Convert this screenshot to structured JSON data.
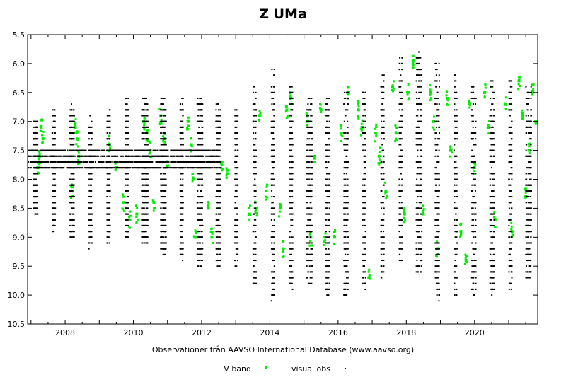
{
  "chart_data": {
    "type": "scatter",
    "title": "Z UMa",
    "xlabel": "Observationer från AAVSO International Database (www.aavso.org)",
    "ylabel": "",
    "xlim": [
      2006.9,
      2021.85
    ],
    "ylim": [
      10.5,
      5.5
    ],
    "y_inverted": true,
    "x_ticks": [
      2008,
      2010,
      2012,
      2014,
      2016,
      2018,
      2020
    ],
    "x_minor_step": 0.5,
    "y_ticks": [
      5.5,
      6.0,
      6.5,
      7.0,
      7.5,
      8.0,
      8.5,
      9.0,
      9.5,
      10.0,
      10.5
    ],
    "y_tick_labels": [
      "5.5",
      "6.0",
      "6.5",
      "7.0",
      "7.5",
      "8.0",
      "8.5",
      "9.0",
      "9.5",
      "10.0",
      "10.5"
    ],
    "legend_position": "bottom",
    "series": [
      {
        "name": "V band",
        "color": "#00ee00",
        "marker": "square",
        "points": [
          [
            2007.3,
            7.1
          ],
          [
            2007.35,
            7.3
          ],
          [
            2007.25,
            7.6
          ],
          [
            2007.2,
            7.8
          ],
          [
            2008.3,
            7.1
          ],
          [
            2008.35,
            7.3
          ],
          [
            2008.4,
            7.6
          ],
          [
            2008.2,
            8.2
          ],
          [
            2009.3,
            7.4
          ],
          [
            2009.5,
            7.7
          ],
          [
            2009.7,
            8.4
          ],
          [
            2009.9,
            8.7
          ],
          [
            2010.3,
            7.0
          ],
          [
            2010.4,
            7.2
          ],
          [
            2010.5,
            7.5
          ],
          [
            2010.1,
            8.6
          ],
          [
            2010.8,
            6.9
          ],
          [
            2010.9,
            7.3
          ],
          [
            2011.0,
            7.7
          ],
          [
            2010.6,
            8.4
          ],
          [
            2011.6,
            7.0
          ],
          [
            2011.7,
            7.4
          ],
          [
            2011.75,
            8.0
          ],
          [
            2011.8,
            9.0
          ],
          [
            2012.6,
            7.7
          ],
          [
            2012.75,
            7.9
          ],
          [
            2012.2,
            8.5
          ],
          [
            2012.3,
            9.0
          ],
          [
            2013.6,
            8.5
          ],
          [
            2013.4,
            8.6
          ],
          [
            2013.9,
            8.2
          ],
          [
            2013.7,
            6.9
          ],
          [
            2014.3,
            8.5
          ],
          [
            2014.4,
            9.2
          ],
          [
            2014.5,
            6.8
          ],
          [
            2014.6,
            6.6
          ],
          [
            2015.1,
            7.0
          ],
          [
            2015.3,
            7.6
          ],
          [
            2015.2,
            9.0
          ],
          [
            2015.5,
            6.8
          ],
          [
            2015.6,
            9.0
          ],
          [
            2015.9,
            9.0
          ],
          [
            2016.1,
            7.2
          ],
          [
            2016.3,
            6.5
          ],
          [
            2016.6,
            6.8
          ],
          [
            2016.7,
            7.1
          ],
          [
            2016.9,
            9.7
          ],
          [
            2017.1,
            7.2
          ],
          [
            2017.2,
            7.6
          ],
          [
            2017.4,
            8.2
          ],
          [
            2017.6,
            6.4
          ],
          [
            2017.7,
            7.2
          ],
          [
            2017.95,
            8.6
          ],
          [
            2018.05,
            6.5
          ],
          [
            2018.2,
            5.95
          ],
          [
            2018.5,
            8.6
          ],
          [
            2018.7,
            6.5
          ],
          [
            2018.8,
            7.0
          ],
          [
            2018.9,
            9.2
          ],
          [
            2019.2,
            6.6
          ],
          [
            2019.3,
            7.5
          ],
          [
            2019.6,
            8.9
          ],
          [
            2019.75,
            9.4
          ],
          [
            2019.85,
            6.7
          ],
          [
            2020.0,
            7.8
          ],
          [
            2020.3,
            6.5
          ],
          [
            2020.4,
            7.1
          ],
          [
            2020.6,
            8.7
          ],
          [
            2020.9,
            6.7
          ],
          [
            2021.1,
            8.9
          ],
          [
            2021.3,
            6.3
          ],
          [
            2021.4,
            6.9
          ],
          [
            2021.5,
            8.3
          ],
          [
            2021.7,
            6.5
          ],
          [
            2021.8,
            7.0
          ],
          [
            2021.6,
            7.5
          ]
        ]
      },
      {
        "name": "visual obs",
        "color": "#000000",
        "marker": "dot",
        "cycle_start": 2007.15,
        "cycle_period_days": 195.5,
        "envelope": [
          [
            2007.0,
            7.0,
            8.5
          ],
          [
            2008.0,
            6.7,
            9.1
          ],
          [
            2009.0,
            6.9,
            9.2
          ],
          [
            2010.0,
            6.5,
            9.0
          ],
          [
            2011.0,
            6.6,
            9.3
          ],
          [
            2012.0,
            6.6,
            9.5
          ],
          [
            2013.0,
            6.8,
            9.5
          ],
          [
            2014.0,
            6.0,
            10.1
          ],
          [
            2015.0,
            6.6,
            9.8
          ],
          [
            2016.0,
            6.5,
            10.1
          ],
          [
            2017.0,
            6.4,
            9.8
          ],
          [
            2018.0,
            5.7,
            9.4
          ],
          [
            2019.0,
            6.0,
            10.1
          ],
          [
            2020.0,
            6.4,
            10.0
          ],
          [
            2021.0,
            6.2,
            10.0
          ],
          [
            2021.85,
            6.5,
            9.6
          ]
        ]
      }
    ]
  }
}
